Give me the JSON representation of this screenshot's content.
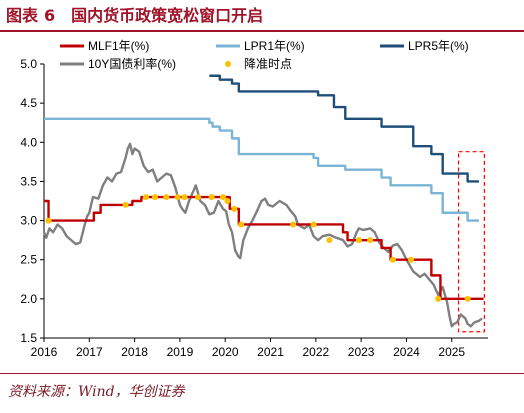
{
  "figure": {
    "label": "图表",
    "number": "6",
    "title": "国内货币政策宽松窗口开启",
    "source": "资料来源：Wind，华创证券"
  },
  "colors": {
    "mlf": "#c00000",
    "lpr1": "#7ab4d6",
    "lpr5": "#1f4e79",
    "y10": "#7f7f7f",
    "points": "#ffc000",
    "window": "#ff0000",
    "accent": "#a0142a"
  },
  "chart_data": {
    "type": "line",
    "xlim": [
      2016.0,
      2025.8
    ],
    "ylim": [
      1.5,
      5.0
    ],
    "x_ticks": [
      "2016",
      "2017",
      "2018",
      "2019",
      "2020",
      "2021",
      "2022",
      "2023",
      "2024",
      "2025"
    ],
    "y_ticks": [
      "1.5",
      "2.0",
      "2.5",
      "3.0",
      "3.5",
      "4.0",
      "4.5",
      "5.0"
    ],
    "legend_position": "top",
    "series": [
      {
        "key": "mlf",
        "name": "MLF1年(%)",
        "style": "step",
        "points": [
          [
            2016.0,
            3.25
          ],
          [
            2016.1,
            3.0
          ],
          [
            2017.1,
            3.1
          ],
          [
            2017.25,
            3.2
          ],
          [
            2017.95,
            3.25
          ],
          [
            2018.15,
            3.3
          ],
          [
            2020.1,
            3.15
          ],
          [
            2020.3,
            2.95
          ],
          [
            2022.6,
            2.85
          ],
          [
            2022.7,
            2.75
          ],
          [
            2023.45,
            2.65
          ],
          [
            2023.65,
            2.5
          ],
          [
            2024.55,
            2.3
          ],
          [
            2024.75,
            2.0
          ],
          [
            2025.7,
            2.0
          ]
        ]
      },
      {
        "key": "lpr1",
        "name": "LPR1年(%)",
        "style": "step",
        "points": [
          [
            2016.0,
            4.3
          ],
          [
            2019.65,
            4.25
          ],
          [
            2019.72,
            4.2
          ],
          [
            2019.88,
            4.15
          ],
          [
            2020.15,
            4.05
          ],
          [
            2020.3,
            3.85
          ],
          [
            2021.95,
            3.8
          ],
          [
            2022.05,
            3.7
          ],
          [
            2022.65,
            3.65
          ],
          [
            2023.45,
            3.55
          ],
          [
            2023.65,
            3.45
          ],
          [
            2024.55,
            3.35
          ],
          [
            2024.8,
            3.1
          ],
          [
            2025.35,
            3.0
          ],
          [
            2025.6,
            3.0
          ]
        ]
      },
      {
        "key": "lpr5",
        "name": "LPR5年(%)",
        "style": "step",
        "points": [
          [
            2019.65,
            4.85
          ],
          [
            2019.88,
            4.8
          ],
          [
            2020.15,
            4.75
          ],
          [
            2020.3,
            4.65
          ],
          [
            2022.05,
            4.6
          ],
          [
            2022.4,
            4.45
          ],
          [
            2022.65,
            4.3
          ],
          [
            2023.45,
            4.2
          ],
          [
            2024.15,
            3.95
          ],
          [
            2024.55,
            3.85
          ],
          [
            2024.8,
            3.6
          ],
          [
            2025.35,
            3.5
          ],
          [
            2025.6,
            3.5
          ]
        ]
      },
      {
        "key": "y10",
        "name": "10Y国债利率(%)",
        "style": "line",
        "points": [
          [
            2016.0,
            2.85
          ],
          [
            2016.05,
            2.78
          ],
          [
            2016.12,
            2.9
          ],
          [
            2016.2,
            2.85
          ],
          [
            2016.3,
            2.95
          ],
          [
            2016.4,
            2.9
          ],
          [
            2016.5,
            2.8
          ],
          [
            2016.6,
            2.75
          ],
          [
            2016.7,
            2.7
          ],
          [
            2016.8,
            2.72
          ],
          [
            2016.9,
            2.95
          ],
          [
            2016.95,
            3.05
          ],
          [
            2017.0,
            3.1
          ],
          [
            2017.08,
            3.3
          ],
          [
            2017.2,
            3.28
          ],
          [
            2017.3,
            3.45
          ],
          [
            2017.4,
            3.55
          ],
          [
            2017.5,
            3.5
          ],
          [
            2017.6,
            3.6
          ],
          [
            2017.7,
            3.62
          ],
          [
            2017.8,
            3.8
          ],
          [
            2017.85,
            3.92
          ],
          [
            2017.9,
            3.98
          ],
          [
            2017.95,
            3.85
          ],
          [
            2018.0,
            3.92
          ],
          [
            2018.1,
            3.88
          ],
          [
            2018.2,
            3.7
          ],
          [
            2018.3,
            3.62
          ],
          [
            2018.4,
            3.65
          ],
          [
            2018.5,
            3.5
          ],
          [
            2018.6,
            3.55
          ],
          [
            2018.7,
            3.6
          ],
          [
            2018.8,
            3.58
          ],
          [
            2018.9,
            3.42
          ],
          [
            2019.0,
            3.2
          ],
          [
            2019.05,
            3.15
          ],
          [
            2019.12,
            3.1
          ],
          [
            2019.2,
            3.25
          ],
          [
            2019.3,
            3.38
          ],
          [
            2019.35,
            3.45
          ],
          [
            2019.45,
            3.25
          ],
          [
            2019.55,
            3.2
          ],
          [
            2019.65,
            3.08
          ],
          [
            2019.75,
            3.1
          ],
          [
            2019.85,
            3.25
          ],
          [
            2019.95,
            3.15
          ],
          [
            2020.02,
            3.12
          ],
          [
            2020.08,
            2.95
          ],
          [
            2020.15,
            2.85
          ],
          [
            2020.22,
            2.62
          ],
          [
            2020.28,
            2.55
          ],
          [
            2020.33,
            2.52
          ],
          [
            2020.4,
            2.75
          ],
          [
            2020.5,
            2.9
          ],
          [
            2020.6,
            3.0
          ],
          [
            2020.7,
            3.12
          ],
          [
            2020.8,
            3.25
          ],
          [
            2020.88,
            3.28
          ],
          [
            2020.95,
            3.2
          ],
          [
            2021.05,
            3.18
          ],
          [
            2021.2,
            3.25
          ],
          [
            2021.35,
            3.2
          ],
          [
            2021.45,
            3.12
          ],
          [
            2021.55,
            3.05
          ],
          [
            2021.6,
            2.95
          ],
          [
            2021.75,
            2.9
          ],
          [
            2021.85,
            2.95
          ],
          [
            2021.95,
            2.8
          ],
          [
            2022.05,
            2.75
          ],
          [
            2022.15,
            2.8
          ],
          [
            2022.3,
            2.82
          ],
          [
            2022.45,
            2.78
          ],
          [
            2022.6,
            2.75
          ],
          [
            2022.7,
            2.67
          ],
          [
            2022.8,
            2.7
          ],
          [
            2022.9,
            2.85
          ],
          [
            2022.95,
            2.9
          ],
          [
            2023.05,
            2.88
          ],
          [
            2023.2,
            2.9
          ],
          [
            2023.3,
            2.85
          ],
          [
            2023.4,
            2.72
          ],
          [
            2023.5,
            2.65
          ],
          [
            2023.6,
            2.6
          ],
          [
            2023.7,
            2.68
          ],
          [
            2023.8,
            2.7
          ],
          [
            2023.9,
            2.62
          ],
          [
            2024.0,
            2.5
          ],
          [
            2024.05,
            2.45
          ],
          [
            2024.15,
            2.35
          ],
          [
            2024.3,
            2.28
          ],
          [
            2024.4,
            2.32
          ],
          [
            2024.5,
            2.25
          ],
          [
            2024.6,
            2.18
          ],
          [
            2024.7,
            2.05
          ],
          [
            2024.8,
            2.15
          ],
          [
            2024.85,
            2.05
          ],
          [
            2024.9,
            1.95
          ],
          [
            2024.95,
            1.78
          ],
          [
            2025.0,
            1.65
          ],
          [
            2025.05,
            1.68
          ],
          [
            2025.12,
            1.7
          ],
          [
            2025.2,
            1.8
          ],
          [
            2025.3,
            1.75
          ],
          [
            2025.35,
            1.68
          ],
          [
            2025.42,
            1.65
          ],
          [
            2025.5,
            1.7
          ],
          [
            2025.6,
            1.72
          ],
          [
            2025.67,
            1.75
          ]
        ]
      }
    ],
    "markers": {
      "name": "降准时点",
      "points": [
        [
          2016.1,
          3.0
        ],
        [
          2017.8,
          3.2
        ],
        [
          2018.25,
          3.3
        ],
        [
          2018.45,
          3.3
        ],
        [
          2018.7,
          3.3
        ],
        [
          2018.95,
          3.3
        ],
        [
          2019.1,
          3.3
        ],
        [
          2019.4,
          3.3
        ],
        [
          2019.7,
          3.3
        ],
        [
          2019.95,
          3.3
        ],
        [
          2020.05,
          3.25
        ],
        [
          2020.2,
          3.15
        ],
        [
          2020.35,
          2.95
        ],
        [
          2021.5,
          2.95
        ],
        [
          2021.95,
          2.95
        ],
        [
          2022.3,
          2.75
        ],
        [
          2022.95,
          2.75
        ],
        [
          2023.2,
          2.75
        ],
        [
          2023.7,
          2.5
        ],
        [
          2024.1,
          2.5
        ],
        [
          2024.7,
          2.0
        ],
        [
          2025.35,
          2.0
        ]
      ]
    },
    "window": {
      "x_from": 2025.15,
      "x_to": 2025.72,
      "y_from": 1.58,
      "y_to": 3.88
    }
  }
}
